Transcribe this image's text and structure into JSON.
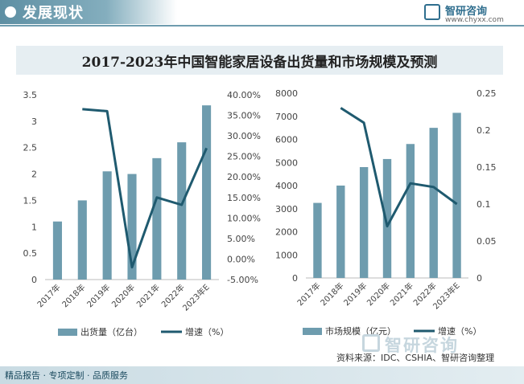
{
  "header": {
    "title": "发展现状"
  },
  "brand": {
    "name": "智研咨询",
    "url": "www.chyxx.com"
  },
  "title": "2017-2023年中国智能家居设备出货量和市场规模及预测",
  "footer": {
    "left": "精品报告 · 专项定制 · 品质服务"
  },
  "source": "资料来源：IDC、CSHIA、智研咨询整理",
  "watermark": "智研咨询",
  "colors": {
    "bar": "#6e9cae",
    "line": "#1f5a6f"
  },
  "chart_data": [
    {
      "type": "bar",
      "categories": [
        "2017年",
        "2018年",
        "2019年",
        "2020年",
        "2021年",
        "2022年",
        "2023年E"
      ],
      "series": [
        {
          "name": "出货量（亿台）",
          "kind": "bar",
          "axis": "left",
          "values": [
            1.1,
            1.5,
            2.05,
            2.0,
            2.3,
            2.6,
            3.3
          ]
        },
        {
          "name": "增速（%）",
          "kind": "line",
          "axis": "right",
          "values": [
            null,
            36.5,
            36.0,
            -2.0,
            15.0,
            13.2,
            27.0
          ]
        }
      ],
      "yleft": {
        "ylim": [
          0,
          3.5
        ],
        "ticks": [
          "0",
          "0.5",
          "1",
          "1.5",
          "2",
          "2.5",
          "3",
          "3.5"
        ]
      },
      "yright": {
        "ylim": [
          -5,
          40
        ],
        "ticks": [
          "-5.00%",
          "0.00%",
          "5.00%",
          "10.00%",
          "15.00%",
          "20.00%",
          "25.00%",
          "30.00%",
          "35.00%",
          "40.00%"
        ]
      },
      "legend": "bottom"
    },
    {
      "type": "bar",
      "categories": [
        "2017年",
        "2018年",
        "2019年",
        "2020年",
        "2021年",
        "2022年",
        "2023年E"
      ],
      "series": [
        {
          "name": "市场规模（亿元）",
          "kind": "bar",
          "axis": "left",
          "values": [
            3250,
            4000,
            4800,
            5150,
            5800,
            6500,
            7150
          ]
        },
        {
          "name": "增速（%）",
          "kind": "line",
          "axis": "right",
          "values": [
            null,
            0.23,
            0.21,
            0.07,
            0.128,
            0.123,
            0.1
          ]
        }
      ],
      "yleft": {
        "ylim": [
          0,
          8000
        ],
        "ticks": [
          "0",
          "1000",
          "2000",
          "3000",
          "4000",
          "5000",
          "6000",
          "7000",
          "8000"
        ]
      },
      "yright": {
        "ylim": [
          0,
          0.25
        ],
        "ticks": [
          "0",
          "0.05",
          "0.1",
          "0.15",
          "0.2",
          "0.25"
        ]
      },
      "legend": "bottom"
    }
  ]
}
